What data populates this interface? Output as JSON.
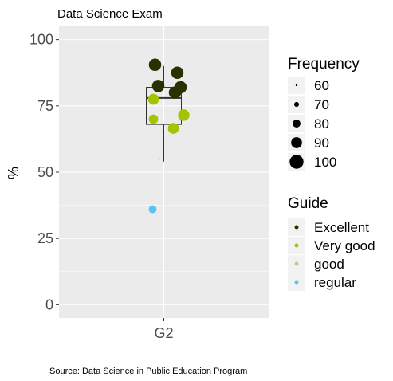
{
  "chart_data": {
    "type": "scatter",
    "title": "Data Science Exam",
    "caption": "Source: Data Science in Public Education Program",
    "xlabel": "",
    "ylabel": "%",
    "categories": [
      "G2"
    ],
    "ylim": [
      -5,
      105
    ],
    "y_ticks": [
      0,
      25,
      50,
      75,
      100
    ],
    "y_tick_labels": [
      "0",
      "25",
      "50",
      "75",
      "100"
    ],
    "grid": true,
    "boxplot": {
      "category": "G2",
      "q1": 68,
      "median": 78,
      "q3": 82,
      "whisker_low": 54,
      "whisker_high": 90
    },
    "points": [
      {
        "y": 90.5,
        "guide": "Excellent",
        "frequency": 95
      },
      {
        "y": 87.5,
        "guide": "Excellent",
        "frequency": 95
      },
      {
        "y": 82.5,
        "guide": "Excellent",
        "frequency": 95
      },
      {
        "y": 82.0,
        "guide": "Excellent",
        "frequency": 95
      },
      {
        "y": 80.0,
        "guide": "Excellent",
        "frequency": 95
      },
      {
        "y": 77.5,
        "guide": "Very good",
        "frequency": 90
      },
      {
        "y": 71.5,
        "guide": "Very good",
        "frequency": 92
      },
      {
        "y": 70.0,
        "guide": "Very good",
        "frequency": 85
      },
      {
        "y": 66.5,
        "guide": "Very good",
        "frequency": 90
      },
      {
        "y": 55.0,
        "guide": "good",
        "frequency": 60
      },
      {
        "y": 36.0,
        "guide": "regular",
        "frequency": 80
      }
    ],
    "legend_position": "right",
    "size_legend": {
      "title": "Frequency",
      "entries": [
        {
          "label": "60",
          "value": 60
        },
        {
          "label": "70",
          "value": 70
        },
        {
          "label": "80",
          "value": 80
        },
        {
          "label": "90",
          "value": 90
        },
        {
          "label": "100",
          "value": 100
        }
      ]
    },
    "color_legend": {
      "title": "Guide",
      "entries": [
        {
          "label": "Excellent",
          "color": "#2b3000"
        },
        {
          "label": "Very good",
          "color": "#a3c400"
        },
        {
          "label": "good",
          "color": "#cfc28a"
        },
        {
          "label": "regular",
          "color": "#5bc3ef"
        }
      ]
    },
    "colors": {
      "panel": "#ebebeb",
      "grid_major": "#ffffff",
      "box": "#333333"
    }
  }
}
